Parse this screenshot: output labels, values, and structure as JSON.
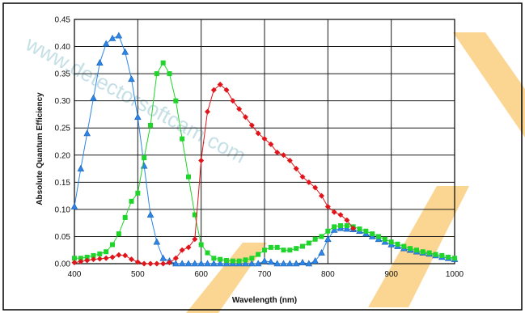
{
  "colors": {
    "background": "#ffffff",
    "watermark_orange": "#f7b43a",
    "watermark_text": "#5aa7b8",
    "grid": "#1a1a1a",
    "blue_series": "#2c86e8",
    "green_series": "#1fd42a",
    "red_series": "#e0141a"
  },
  "watermark": {
    "text": "www.detectorsoftcam.com"
  },
  "chart_data": {
    "type": "scatter",
    "title": "",
    "xlabel": "Wavelength (nm)",
    "ylabel": "Absolute Quantum Efficiency",
    "xlim": [
      400,
      1000
    ],
    "ylim": [
      0,
      0.45
    ],
    "xticks": [
      400,
      500,
      600,
      700,
      800,
      900,
      1000
    ],
    "yticks": [
      "0.00",
      "0.05",
      "0.10",
      "0.15",
      "0.20",
      "0.25",
      "0.30",
      "0.35",
      "0.40",
      "0.45"
    ],
    "grid": true,
    "legend": "none",
    "series": [
      {
        "color": "#2c86e8",
        "marker": "triangle",
        "x": [
          400,
          410,
          420,
          430,
          440,
          450,
          460,
          470,
          480,
          490,
          500,
          510,
          520,
          530,
          540,
          550,
          560,
          570,
          580,
          590,
          600,
          610,
          620,
          630,
          640,
          650,
          660,
          670,
          680,
          690,
          700,
          710,
          720,
          730,
          740,
          750,
          760,
          770,
          780,
          790,
          800,
          810,
          820,
          830,
          840,
          850,
          860,
          870,
          880,
          890,
          900,
          910,
          920,
          930,
          940,
          950,
          960,
          970,
          980,
          990,
          1000
        ],
        "y": [
          0.105,
          0.175,
          0.24,
          0.305,
          0.37,
          0.405,
          0.415,
          0.42,
          0.39,
          0.34,
          0.27,
          0.18,
          0.09,
          0.04,
          0.01,
          0.005,
          0.0,
          0.0,
          0.0,
          0.0,
          0.0,
          0.0,
          0.0,
          0.0,
          0.0,
          0.0,
          0.0,
          0.0,
          0.0,
          0.0,
          0.005,
          0.003,
          0.0,
          0.0,
          0.0,
          0.0,
          0.002,
          0.0,
          0.005,
          0.02,
          0.045,
          0.062,
          0.065,
          0.064,
          0.063,
          0.06,
          0.055,
          0.05,
          0.045,
          0.04,
          0.035,
          0.032,
          0.028,
          0.025,
          0.022,
          0.02,
          0.018,
          0.015,
          0.012,
          0.01,
          0.008
        ]
      },
      {
        "color": "#1fd42a",
        "marker": "square",
        "x": [
          400,
          410,
          420,
          430,
          440,
          450,
          460,
          470,
          480,
          490,
          500,
          510,
          520,
          530,
          540,
          550,
          560,
          570,
          580,
          590,
          600,
          610,
          620,
          630,
          640,
          650,
          660,
          670,
          680,
          690,
          700,
          710,
          720,
          730,
          740,
          750,
          760,
          770,
          780,
          790,
          800,
          810,
          820,
          830,
          840,
          850,
          860,
          870,
          880,
          890,
          900,
          910,
          920,
          930,
          940,
          950,
          960,
          970,
          980,
          990,
          1000
        ],
        "y": [
          0.01,
          0.01,
          0.012,
          0.015,
          0.018,
          0.022,
          0.035,
          0.055,
          0.085,
          0.115,
          0.13,
          0.195,
          0.255,
          0.35,
          0.37,
          0.35,
          0.3,
          0.23,
          0.16,
          0.09,
          0.035,
          0.02,
          0.01,
          0.008,
          0.006,
          0.005,
          0.005,
          0.007,
          0.01,
          0.017,
          0.025,
          0.03,
          0.03,
          0.025,
          0.025,
          0.028,
          0.032,
          0.038,
          0.045,
          0.05,
          0.06,
          0.068,
          0.07,
          0.07,
          0.068,
          0.064,
          0.06,
          0.055,
          0.05,
          0.045,
          0.04,
          0.036,
          0.032,
          0.028,
          0.025,
          0.022,
          0.02,
          0.017,
          0.015,
          0.012,
          0.01
        ]
      },
      {
        "color": "#e0141a",
        "marker": "diamond",
        "x": [
          400,
          410,
          420,
          430,
          440,
          450,
          460,
          470,
          480,
          490,
          500,
          510,
          520,
          530,
          540,
          550,
          560,
          570,
          580,
          590,
          600,
          610,
          620,
          630,
          640,
          650,
          660,
          670,
          680,
          690,
          700,
          710,
          720,
          730,
          740,
          750,
          760,
          770,
          780,
          790,
          800,
          810,
          820,
          830,
          840
        ],
        "y": [
          0.002,
          0.004,
          0.006,
          0.008,
          0.009,
          0.01,
          0.012,
          0.016,
          0.015,
          0.008,
          0.003,
          0.0,
          0.0,
          0.0,
          0.0,
          0.002,
          0.01,
          0.025,
          0.03,
          0.045,
          0.19,
          0.28,
          0.32,
          0.33,
          0.32,
          0.3,
          0.285,
          0.27,
          0.255,
          0.24,
          0.23,
          0.22,
          0.205,
          0.2,
          0.19,
          0.175,
          0.16,
          0.15,
          0.14,
          0.125,
          0.105,
          0.095,
          0.09,
          0.08,
          0.065
        ]
      }
    ]
  }
}
